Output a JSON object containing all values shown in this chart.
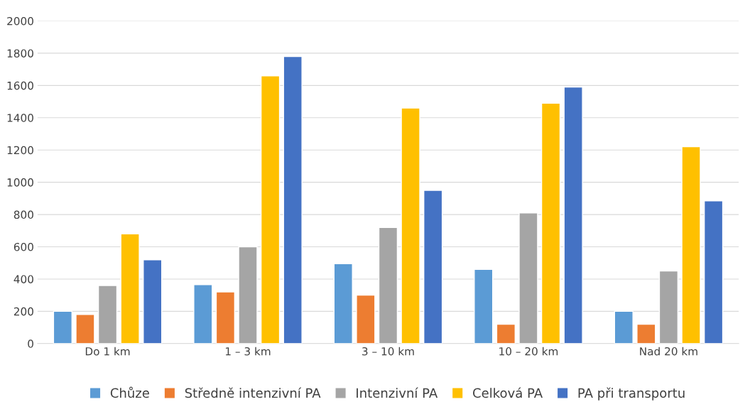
{
  "chart_data": {
    "type": "bar",
    "categories": [
      "Do 1 km",
      "1 – 3 km",
      "3 – 10 km",
      "10 – 20 km",
      "Nad 20 km"
    ],
    "series": [
      {
        "name": "Chůze",
        "color": "#5b9bd5",
        "values": [
          200,
          365,
          495,
          460,
          200
        ]
      },
      {
        "name": "Středně intenzivní PA",
        "color": "#ed7d31",
        "values": [
          180,
          320,
          300,
          120,
          120
        ]
      },
      {
        "name": "Intenzivní PA",
        "color": "#a5a5a5",
        "values": [
          360,
          600,
          720,
          810,
          450
        ]
      },
      {
        "name": "Celková PA",
        "color": "#ffc000",
        "values": [
          680,
          1660,
          1460,
          1490,
          1220
        ]
      },
      {
        "name": "PA při transportu",
        "color": "#4472c4",
        "values": [
          520,
          1780,
          950,
          1590,
          885
        ]
      }
    ],
    "ylim": [
      0,
      2000
    ],
    "yticks": [
      0,
      200,
      400,
      600,
      800,
      1000,
      1200,
      1400,
      1600,
      1800,
      2000
    ],
    "grid": "y",
    "legend": "bottom"
  }
}
